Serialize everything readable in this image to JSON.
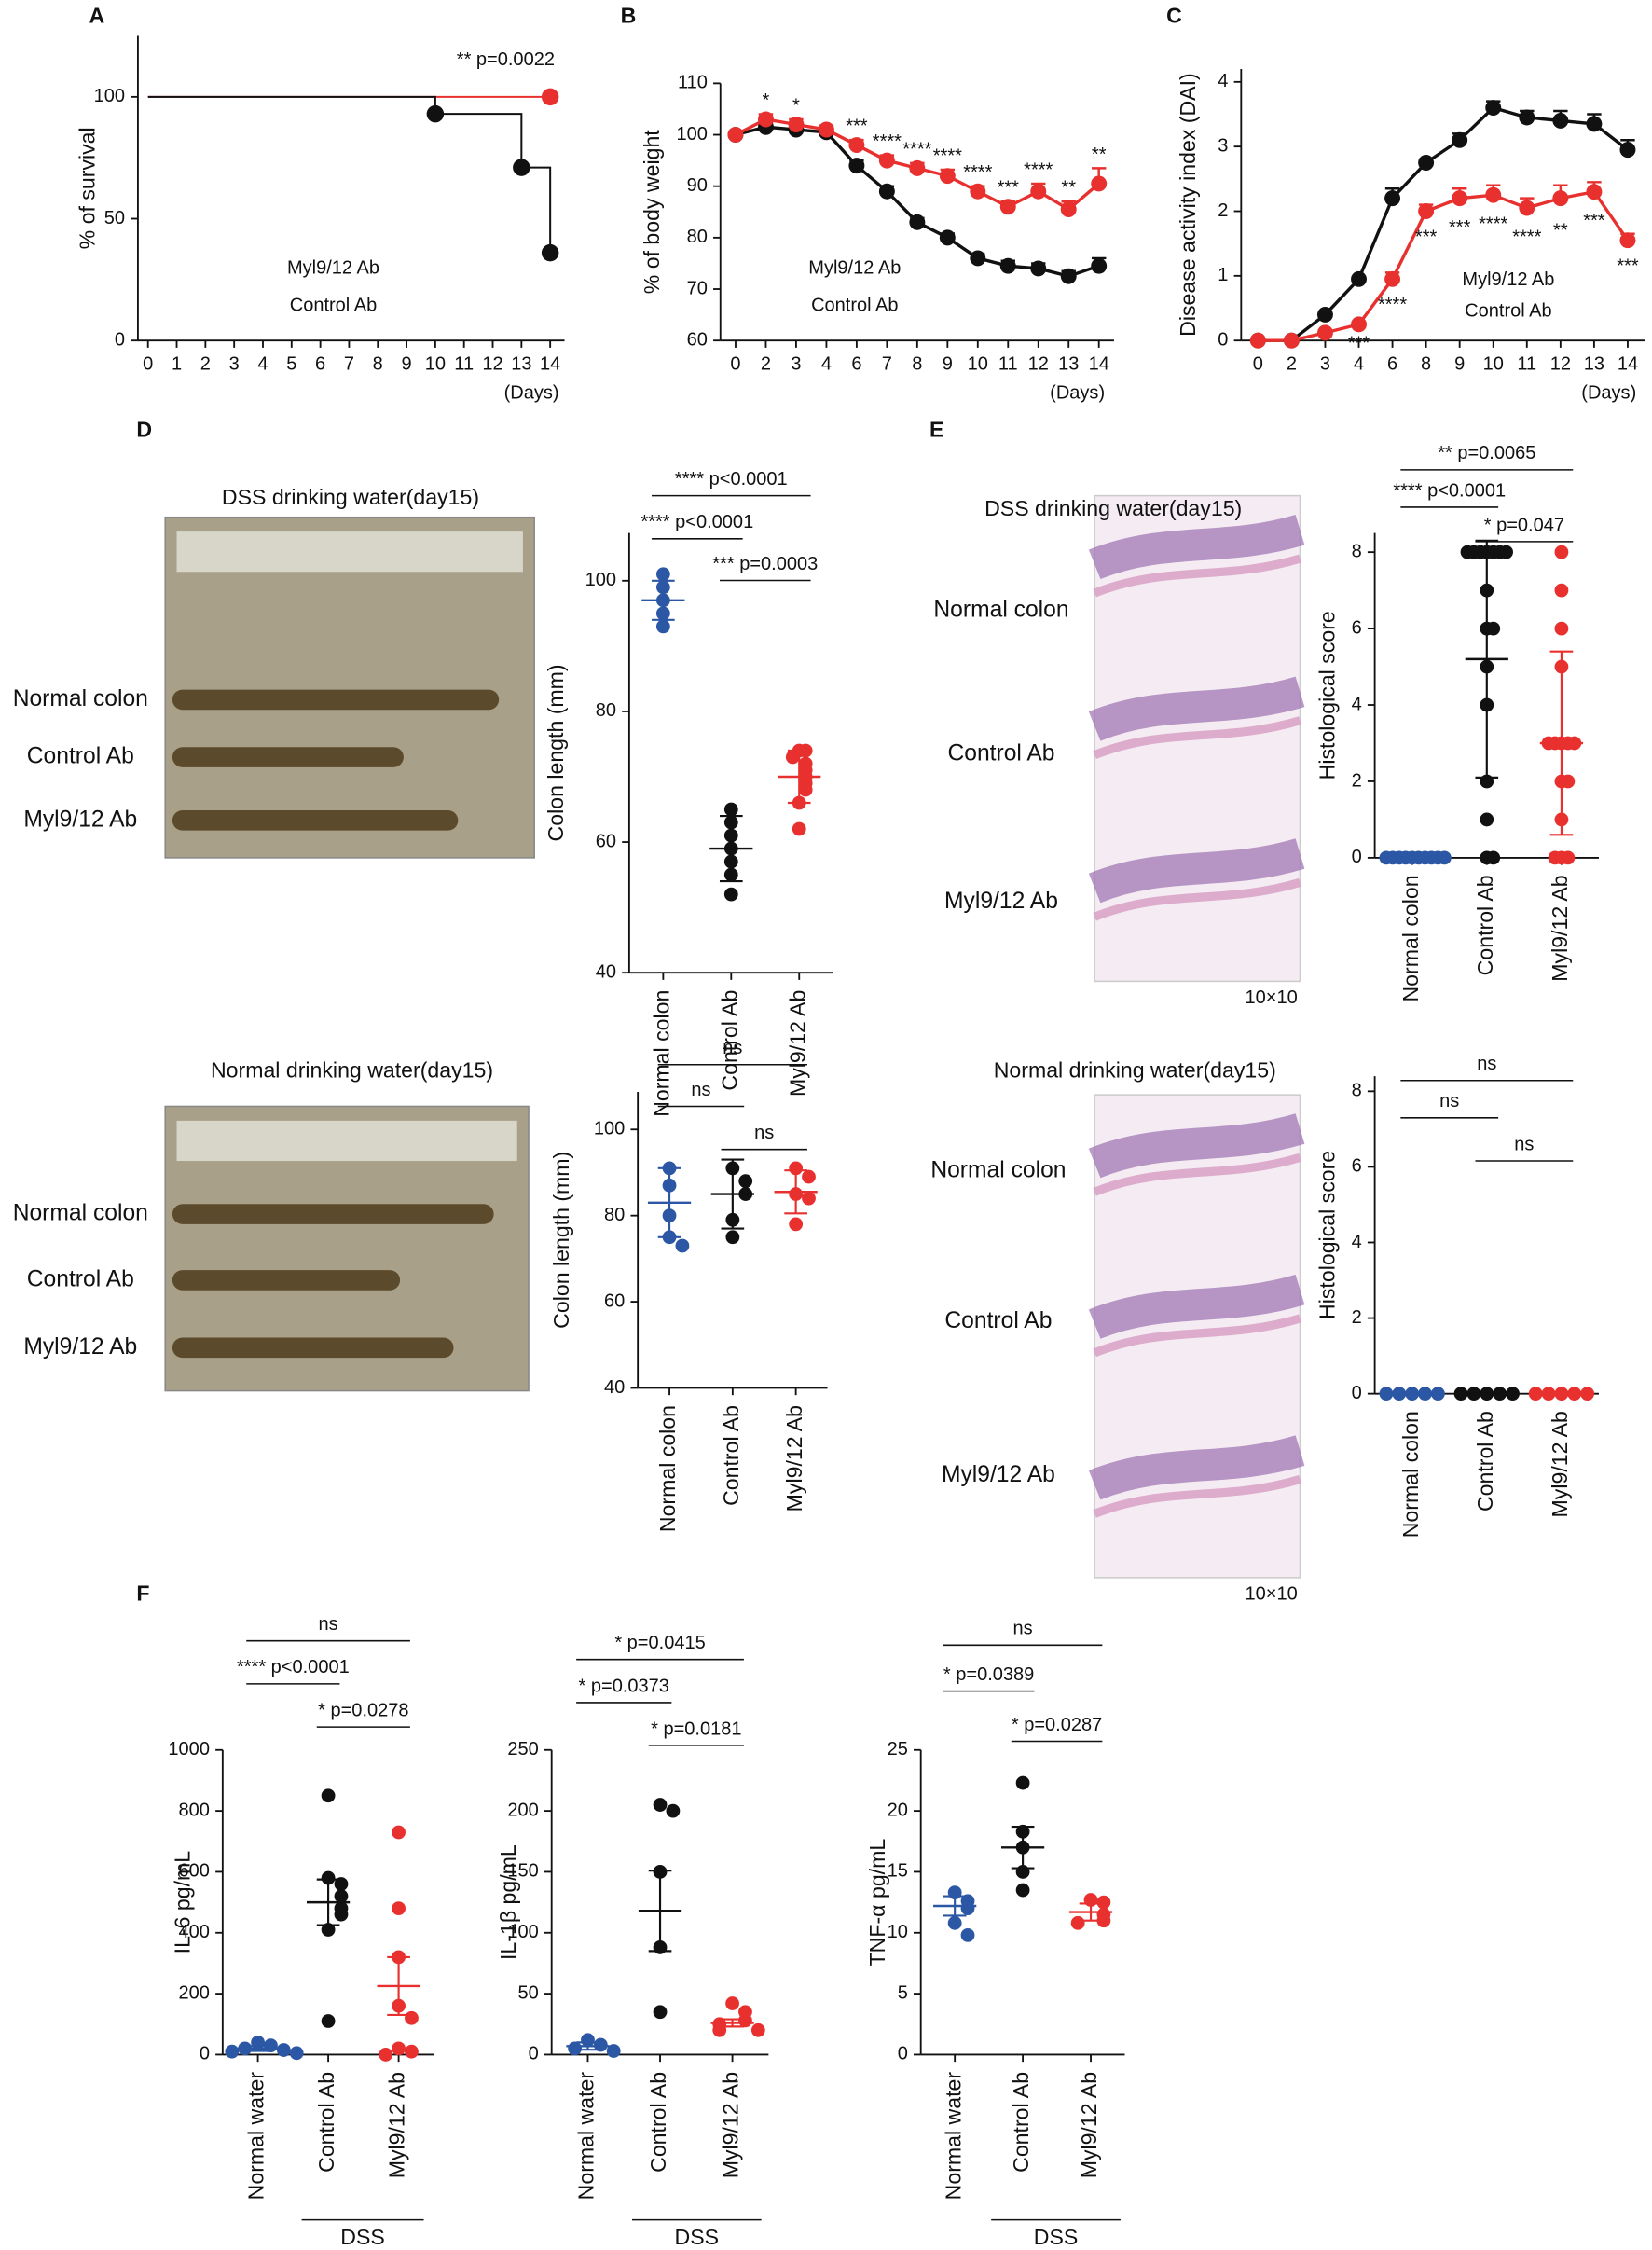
{
  "chart_data": [
    {
      "panel": "A",
      "type": "step",
      "ylabel": "% of survival",
      "xlabel": "(Days)",
      "annotation": "** p=0.0022",
      "xlim": [
        -0.35,
        14.5
      ],
      "xticks": [
        0,
        1,
        2,
        3,
        4,
        5,
        6,
        7,
        8,
        9,
        10,
        11,
        12,
        13,
        14
      ],
      "ylim": [
        0,
        125
      ],
      "yticks": [
        0,
        50,
        100
      ],
      "series": [
        {
          "name": "Myl9/12 Ab",
          "color": "#e8312f",
          "x": [
            0,
            14
          ],
          "values": [
            100,
            100
          ]
        },
        {
          "name": "Control Ab",
          "color": "#111111",
          "x": [
            0,
            10,
            13,
            14
          ],
          "values": [
            100,
            93,
            71,
            36
          ]
        }
      ]
    },
    {
      "panel": "B",
      "type": "line",
      "ylabel": "% of body weight",
      "xlabel": "(Days)",
      "categories": [
        "0",
        "2",
        "3",
        "4",
        "6",
        "7",
        "8",
        "9",
        "10",
        "11",
        "12",
        "13",
        "14"
      ],
      "ylim": [
        60,
        110
      ],
      "yticks": [
        60,
        70,
        80,
        90,
        100,
        110
      ],
      "series": [
        {
          "name": "Myl9/12 Ab",
          "color": "#e8312f",
          "values": [
            100,
            103,
            102,
            101,
            98,
            95,
            93.5,
            92,
            89,
            86,
            89,
            85.5,
            90.5
          ],
          "errors": [
            0.5,
            1,
            1,
            0.8,
            1,
            1,
            1,
            1.2,
            1,
            1,
            1.5,
            1.5,
            3
          ]
        },
        {
          "name": "Control Ab",
          "color": "#111111",
          "values": [
            100,
            101.5,
            101,
            100.5,
            94,
            89,
            83,
            80,
            76,
            74.5,
            74,
            72.5,
            74.5
          ],
          "errors": [
            0.5,
            0.8,
            0.8,
            0.8,
            1,
            1,
            0.8,
            0.8,
            0.8,
            1,
            1,
            1,
            1.5
          ]
        }
      ],
      "significance": [
        null,
        "*",
        "*",
        null,
        "***",
        "****",
        "****",
        "****",
        "****",
        "***",
        "****",
        "**",
        "**"
      ]
    },
    {
      "panel": "C",
      "type": "line",
      "ylabel": "Disease activity index (DAI)",
      "xlabel": "(Days)",
      "categories": [
        "0",
        "2",
        "3",
        "4",
        "6",
        "8",
        "9",
        "10",
        "11",
        "12",
        "13",
        "14"
      ],
      "ylim": [
        0,
        4.2
      ],
      "yticks": [
        0,
        1,
        2,
        3,
        4
      ],
      "series": [
        {
          "name": "Myl9/12 Ab",
          "color": "#e8312f",
          "values": [
            0,
            0,
            0.12,
            0.25,
            0.95,
            2.0,
            2.2,
            2.25,
            2.05,
            2.2,
            2.3,
            1.55
          ],
          "errors": [
            0,
            0,
            0,
            0,
            0.1,
            0.1,
            0.15,
            0.15,
            0.15,
            0.2,
            0.15,
            0.1
          ]
        },
        {
          "name": "Control Ab",
          "color": "#111111",
          "values": [
            0,
            0,
            0.4,
            0.95,
            2.2,
            2.75,
            3.1,
            3.6,
            3.45,
            3.4,
            3.35,
            2.95
          ],
          "errors": [
            0,
            0,
            0,
            0,
            0.15,
            0.05,
            0.1,
            0.1,
            0.1,
            0.15,
            0.15,
            0.15
          ]
        }
      ],
      "significance": [
        null,
        null,
        null,
        "***",
        "****",
        "***",
        "***",
        "****",
        "****",
        "**",
        "***",
        "***"
      ]
    },
    {
      "panel": "D",
      "type": "dot",
      "ylabel": "Colon length (mm)",
      "categories": [
        "Normal colon",
        "Control Ab",
        "Myl9/12 Ab"
      ],
      "colors": [
        "#2b57a5",
        "#111111",
        "#e8312f"
      ],
      "ylim": [
        40,
        107.3
      ],
      "yticks": [
        40,
        60,
        80,
        100
      ],
      "points": [
        [
          101,
          99,
          97,
          95,
          93
        ],
        [
          65,
          63,
          61,
          59,
          57,
          55,
          52
        ],
        [
          74,
          74,
          73,
          72,
          71,
          70,
          69,
          68,
          66,
          62
        ]
      ],
      "means": [
        97,
        59,
        70
      ],
      "errors": [
        3,
        5,
        4
      ],
      "brackets": [
        "**** p<0.0001",
        "**** p<0.0001",
        "*** p=0.0003"
      ],
      "photo": {
        "title": "DSS drinking water(day15)",
        "rows": [
          "Normal colon",
          "Control Ab",
          "Myl9/12 Ab"
        ]
      }
    },
    {
      "type": "dot",
      "ylabel": "Colon length (mm)",
      "categories": [
        "Normal colon",
        "Control Ab",
        "Myl9/12 Ab"
      ],
      "colors": [
        "#2b57a5",
        "#111111",
        "#e8312f"
      ],
      "ylim": [
        40,
        108.7
      ],
      "yticks": [
        40,
        60,
        80,
        100
      ],
      "points": [
        [
          91,
          87,
          80,
          75,
          73
        ],
        [
          91,
          88,
          85,
          79,
          75
        ],
        [
          91,
          89,
          85,
          84,
          78
        ]
      ],
      "means": [
        83,
        85,
        85.5
      ],
      "errors": [
        8,
        8,
        5
      ],
      "brackets": [
        "ns",
        "ns",
        "ns"
      ],
      "photo": {
        "title": "Normal drinking water(day15)",
        "rows": [
          "Normal colon",
          "Control Ab",
          "Myl9/12 Ab"
        ]
      }
    },
    {
      "panel": "E",
      "type": "dot",
      "ylabel": "Histological score",
      "categories": [
        "Normal colon",
        "Control Ab",
        "Myl9/12 Ab"
      ],
      "colors": [
        "#2b57a5",
        "#111111",
        "#e8312f"
      ],
      "ylim": [
        0,
        8.5
      ],
      "yticks": [
        0,
        2,
        4,
        6,
        8
      ],
      "points": [
        [
          0,
          0,
          0,
          0,
          0,
          0,
          0,
          0,
          0,
          0
        ],
        [
          8,
          8,
          8,
          8,
          8,
          8,
          8,
          7,
          6,
          6,
          5,
          4,
          2,
          1,
          0,
          0
        ],
        [
          8,
          7,
          6,
          5,
          3,
          3,
          3,
          3,
          3,
          2,
          2,
          1,
          0,
          0,
          0
        ]
      ],
      "means": [
        0,
        5.2,
        3
      ],
      "errors": [
        0,
        3.1,
        2.4
      ],
      "brackets": [
        "** p=0.0065",
        "**** p<0.0001",
        "* p=0.047"
      ],
      "photo": {
        "title": "DSS drinking water(day15)",
        "rows": [
          "Normal colon",
          "Control Ab",
          "Myl9/12 Ab"
        ],
        "scale": "10×10"
      }
    },
    {
      "type": "dot",
      "ylabel": "Histological score",
      "categories": [
        "Normal colon",
        "Control Ab",
        "Myl9/12 Ab"
      ],
      "colors": [
        "#2b57a5",
        "#111111",
        "#e8312f"
      ],
      "ylim": [
        0,
        8.4
      ],
      "yticks": [
        0,
        2,
        4,
        6,
        8
      ],
      "points": [
        [
          0,
          0,
          0,
          0,
          0
        ],
        [
          0,
          0,
          0,
          0,
          0
        ],
        [
          0,
          0,
          0,
          0,
          0
        ]
      ],
      "means": [
        0,
        0,
        0
      ],
      "errors": [
        0,
        0,
        0
      ],
      "brackets": [
        "ns",
        "ns",
        "ns"
      ],
      "photo": {
        "title": "Normal drinking water(day15)",
        "rows": [
          "Normal colon",
          "Control Ab",
          "Myl9/12 Ab"
        ],
        "scale": "10×10"
      }
    },
    {
      "panel": "F",
      "type": "dot",
      "ylabel": "IL-6 pg/mL",
      "group_label": "DSS",
      "categories": [
        "Normal water",
        "Control Ab",
        "Myl9/12 Ab"
      ],
      "colors": [
        "#2b57a5",
        "#111111",
        "#e8312f"
      ],
      "ylim": [
        0,
        1000
      ],
      "yticks": [
        0,
        200,
        400,
        600,
        800,
        1000
      ],
      "points": [
        [
          40,
          30,
          20,
          15,
          10,
          5
        ],
        [
          850,
          580,
          560,
          520,
          480,
          460,
          410,
          110
        ],
        [
          730,
          480,
          320,
          160,
          120,
          20,
          10,
          0
        ]
      ],
      "means": [
        20,
        500,
        225
      ],
      "errors": [
        8,
        75,
        95
      ],
      "brackets": [
        "ns",
        "**** p<0.0001",
        "* p=0.0278"
      ]
    },
    {
      "type": "dot",
      "ylabel": "IL-1β pg/mL",
      "group_label": "DSS",
      "categories": [
        "Normal water",
        "Control Ab",
        "Myl9/12 Ab"
      ],
      "colors": [
        "#2b57a5",
        "#111111",
        "#e8312f"
      ],
      "ylim": [
        0,
        250
      ],
      "yticks": [
        0,
        50,
        100,
        150,
        200,
        250
      ],
      "points": [
        [
          12,
          8,
          5,
          3
        ],
        [
          205,
          200,
          150,
          88,
          35
        ],
        [
          42,
          35,
          28,
          25,
          20,
          20
        ]
      ],
      "means": [
        7,
        118,
        26
      ],
      "errors": [
        3,
        33,
        3
      ],
      "brackets": [
        "* p=0.0415",
        "* p=0.0373",
        "* p=0.0181"
      ]
    },
    {
      "type": "dot",
      "ylabel": "TNF-α pg/mL",
      "group_label": "DSS",
      "categories": [
        "Normal water",
        "Control Ab",
        "Myl9/12 Ab"
      ],
      "colors": [
        "#2b57a5",
        "#111111",
        "#e8312f"
      ],
      "ylim": [
        0,
        25
      ],
      "yticks": [
        0,
        5,
        10,
        15,
        20,
        25
      ],
      "points": [
        [
          13.3,
          12.6,
          12,
          10.8,
          9.8
        ],
        [
          22.3,
          18.3,
          17,
          15,
          13.5
        ],
        [
          12.7,
          12.5,
          11.5,
          11,
          10.8
        ]
      ],
      "means": [
        12.2,
        17,
        11.7
      ],
      "errors": [
        0.8,
        1.7,
        0.7
      ],
      "brackets": [
        "ns",
        "* p=0.0389",
        "* p=0.0287"
      ]
    }
  ]
}
